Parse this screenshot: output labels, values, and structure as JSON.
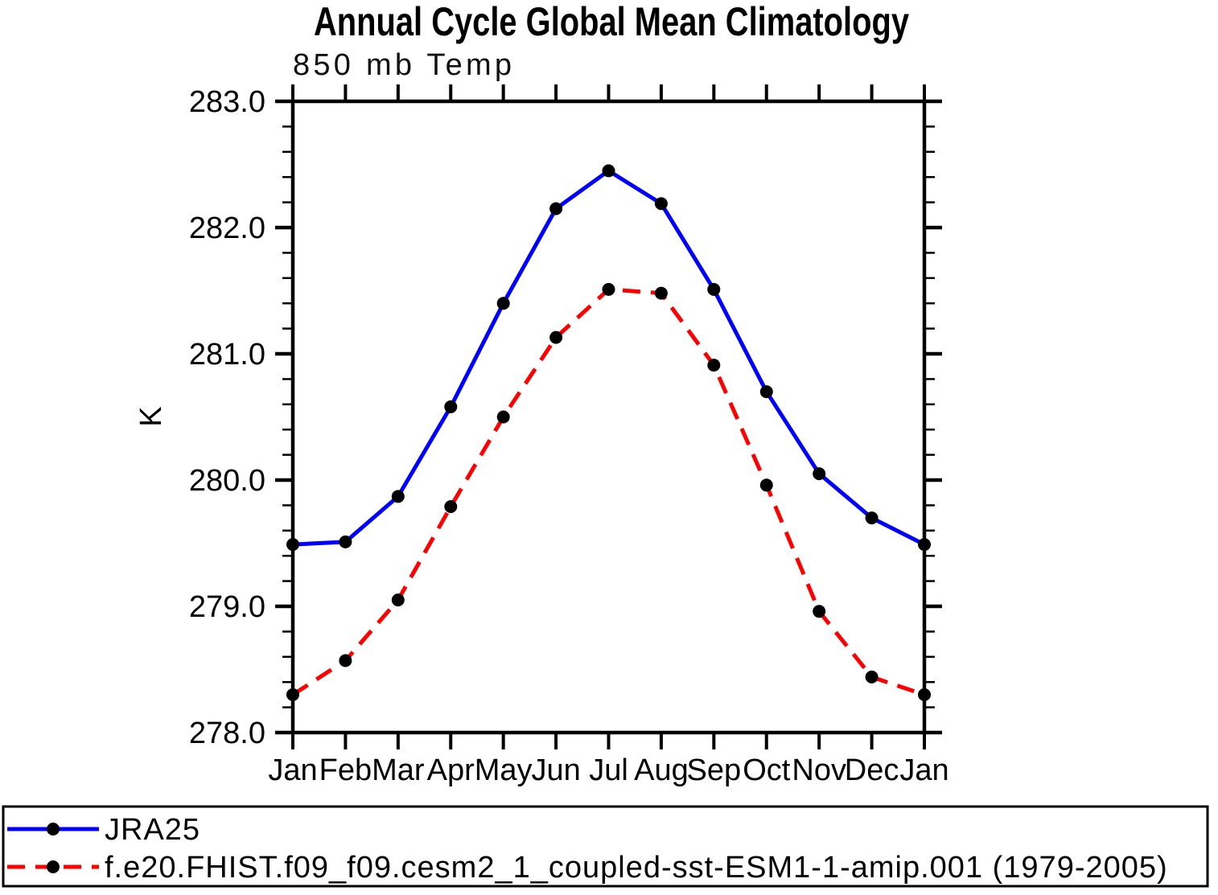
{
  "chart_data": {
    "type": "line",
    "title": "Annual Cycle Global Mean Climatology",
    "subtitle": "850 mb Temp",
    "ylabel": "K",
    "xlabel": "",
    "grid": false,
    "legend_position": "bottom-left-box",
    "categories": [
      "Jan",
      "Feb",
      "Mar",
      "Apr",
      "May",
      "Jun",
      "Jul",
      "Aug",
      "Sep",
      "Oct",
      "Nov",
      "Dec",
      "Jan"
    ],
    "ylim": [
      278.0,
      283.0
    ],
    "ytick_interval_major": 1.0,
    "ytick_interval_minor": 0.2,
    "y_tick_labels": [
      "283.0",
      "282.0",
      "281.0",
      "280.0",
      "279.0",
      "278.0"
    ],
    "axis_color": "#000000",
    "series": [
      {
        "name": "JRA25",
        "line_color": "#0000ff",
        "line_style": "solid",
        "line_width": 5,
        "marker": "filled-circle",
        "marker_color": "#000000",
        "values": [
          279.49,
          279.51,
          279.87,
          280.58,
          281.4,
          282.15,
          282.45,
          282.19,
          281.51,
          280.7,
          280.05,
          279.7,
          279.49
        ]
      },
      {
        "name": "f.e20.FHIST.f09_f09.cesm2_1_coupled-sst-ESM1-1-amip.001 (1979-2005)",
        "line_color": "#ff0000",
        "line_style": "dashed",
        "line_width": 5,
        "marker": "filled-circle",
        "marker_color": "#000000",
        "values": [
          278.3,
          278.57,
          279.05,
          279.79,
          280.5,
          281.13,
          281.51,
          281.48,
          280.91,
          279.96,
          278.96,
          278.44,
          278.3
        ]
      }
    ]
  }
}
